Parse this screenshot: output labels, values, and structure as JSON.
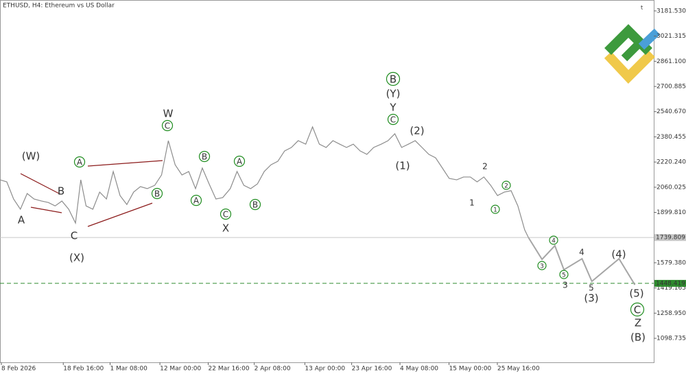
{
  "chart_data": {
    "type": "line",
    "title": "ETHUSD, H4:  Ethereum vs US Dollar",
    "xlim": [
      0,
      866
    ],
    "ylim": [
      946,
      3251
    ],
    "xticks": [
      {
        "value": 0,
        "label": "8 Feb 2026"
      },
      {
        "value": 82,
        "label": "18 Feb 16:00"
      },
      {
        "value": 144,
        "label": "1 Mar 08:00"
      },
      {
        "value": 210,
        "label": "12 Mar 00:00"
      },
      {
        "value": 274,
        "label": "22 Mar 16:00"
      },
      {
        "value": 335,
        "label": "2 Apr 08:00"
      },
      {
        "value": 402,
        "label": "13 Apr 00:00"
      },
      {
        "value": 464,
        "label": "23 Apr 16:00"
      },
      {
        "value": 528,
        "label": "4 May 08:00"
      },
      {
        "value": 593,
        "label": "15 May 00:00"
      },
      {
        "value": 657,
        "label": "25 May 16:00"
      }
    ],
    "yticks": [
      {
        "value": 3181.53,
        "label": "3181.530"
      },
      {
        "value": 3021.315,
        "label": "3021.315"
      },
      {
        "value": 2861.1,
        "label": "2861.100"
      },
      {
        "value": 2700.885,
        "label": "2700.885"
      },
      {
        "value": 2540.67,
        "label": "2540.670"
      },
      {
        "value": 2380.455,
        "label": "2380.455"
      },
      {
        "value": 2220.24,
        "label": "2220.240"
      },
      {
        "value": 2060.025,
        "label": "2060.025"
      },
      {
        "value": 1899.81,
        "label": "1899.810"
      },
      {
        "value": 1579.38,
        "label": "1579.380"
      },
      {
        "value": 1419.165,
        "label": "1419.165"
      },
      {
        "value": 1258.95,
        "label": "1258.950"
      },
      {
        "value": 1098.735,
        "label": "1098.735"
      }
    ],
    "current_price": 1739.809,
    "level": 1448.419,
    "series": [
      {
        "color": "#8c8c8c",
        "x": [
          0,
          9,
          18,
          27,
          36,
          45,
          55,
          64,
          73,
          82,
          91,
          100,
          107,
          114,
          123,
          132,
          141,
          150,
          159,
          168,
          177,
          186,
          195,
          205,
          214,
          223,
          232,
          241,
          250,
          259,
          268,
          277,
          286,
          295,
          305,
          314,
          323,
          332,
          341,
          350,
          359,
          368,
          377,
          386,
          395,
          405,
          414,
          423,
          432,
          441,
          450,
          459,
          468,
          477,
          486,
          495,
          505,
          514,
          523,
          532,
          541,
          550,
          559,
          568,
          577,
          586,
          595,
          605,
          614,
          623,
          632,
          641,
          650,
          659,
          668,
          677,
          686,
          695,
          700
        ],
        "values": [
          2107,
          2094,
          1985,
          1920,
          2020,
          1985,
          1972,
          1963,
          1941,
          1972,
          1920,
          1832,
          2107,
          1941,
          1920,
          2029,
          1985,
          2160,
          2007,
          1950,
          2029,
          2064,
          2051,
          2072,
          2138,
          2356,
          2203,
          2138,
          2160,
          2051,
          2182,
          2081,
          1985,
          1994,
          2051,
          2160,
          2072,
          2051,
          2081,
          2160,
          2203,
          2225,
          2291,
          2313,
          2356,
          2334,
          2444,
          2334,
          2313,
          2356,
          2334,
          2313,
          2334,
          2291,
          2269,
          2313,
          2334,
          2356,
          2400,
          2313,
          2334,
          2356,
          2313,
          2269,
          2247,
          2182,
          2116,
          2107,
          2125,
          2125,
          2094,
          2125,
          2072,
          2007,
          2029,
          2038,
          1941,
          1789,
          1740
        ]
      },
      {
        "color": "#a6a6a6",
        "x": [
          700,
          718,
          735,
          747,
          771,
          784,
          820,
          841
        ],
        "values": [
          1740,
          1601,
          1688,
          1535,
          1605,
          1461,
          1605,
          1439
        ]
      }
    ],
    "annotations": [
      {
        "text": "(W)",
        "color": "#1a237e"
      },
      {
        "text": "A",
        "color": "#8b1a1a"
      },
      {
        "text": "B",
        "color": "#8b1a1a"
      },
      {
        "text": "C",
        "color": "#8b1a1a"
      },
      {
        "text": "(X)",
        "color": "#1a237e"
      },
      {
        "text": "A",
        "color": "#1e8c1e",
        "circled": true
      },
      {
        "text": "B",
        "color": "#1e8c1e",
        "circled": true
      },
      {
        "text": "W",
        "color": "#8b1a1a"
      },
      {
        "text": "C",
        "color": "#1e8c1e",
        "circled": true
      },
      {
        "text": "B",
        "color": "#1e8c1e",
        "circled": true
      },
      {
        "text": "A",
        "color": "#1e8c1e",
        "circled": true
      },
      {
        "text": "A",
        "color": "#1e8c1e",
        "circled": true
      },
      {
        "text": "C",
        "color": "#1e8c1e",
        "circled": true
      },
      {
        "text": "X",
        "color": "#8b1a1a"
      },
      {
        "text": "B",
        "color": "#1e8c1e",
        "circled": true
      },
      {
        "text": "B",
        "color": "#1e8c1e",
        "circled": true
      },
      {
        "text": "(Y)",
        "color": "#1a237e"
      },
      {
        "text": "Y",
        "color": "#8b1a1a"
      },
      {
        "text": "C",
        "color": "#1e8c1e",
        "circled": true
      },
      {
        "text": "(2)",
        "color": "#1a237e"
      },
      {
        "text": "(1)",
        "color": "#1a237e"
      },
      {
        "text": "2",
        "color": "#8b1a1a"
      },
      {
        "text": "2",
        "color": "#1e8c1e",
        "circled": true
      },
      {
        "text": "1",
        "color": "#8b1a1a"
      },
      {
        "text": "1",
        "color": "#1e8c1e",
        "circled": true
      },
      {
        "text": "4",
        "color": "#1e8c1e",
        "circled": true
      },
      {
        "text": "3",
        "color": "#1e8c1e",
        "circled": true
      },
      {
        "text": "5",
        "color": "#1e8c1e",
        "circled": true
      },
      {
        "text": "3",
        "color": "#8b1a1a"
      },
      {
        "text": "4",
        "color": "#8b1a1a"
      },
      {
        "text": "5",
        "color": "#8b1a1a"
      },
      {
        "text": "(4)",
        "color": "#1a237e"
      },
      {
        "text": "(3)",
        "color": "#1a237e"
      },
      {
        "text": "(5)",
        "color": "#1a237e"
      },
      {
        "text": "C",
        "color": "#1e8c1e",
        "circled": true
      },
      {
        "text": "Z",
        "color": "#8b1a1a"
      },
      {
        "text": "(B)",
        "color": "#1a237e"
      }
    ]
  }
}
